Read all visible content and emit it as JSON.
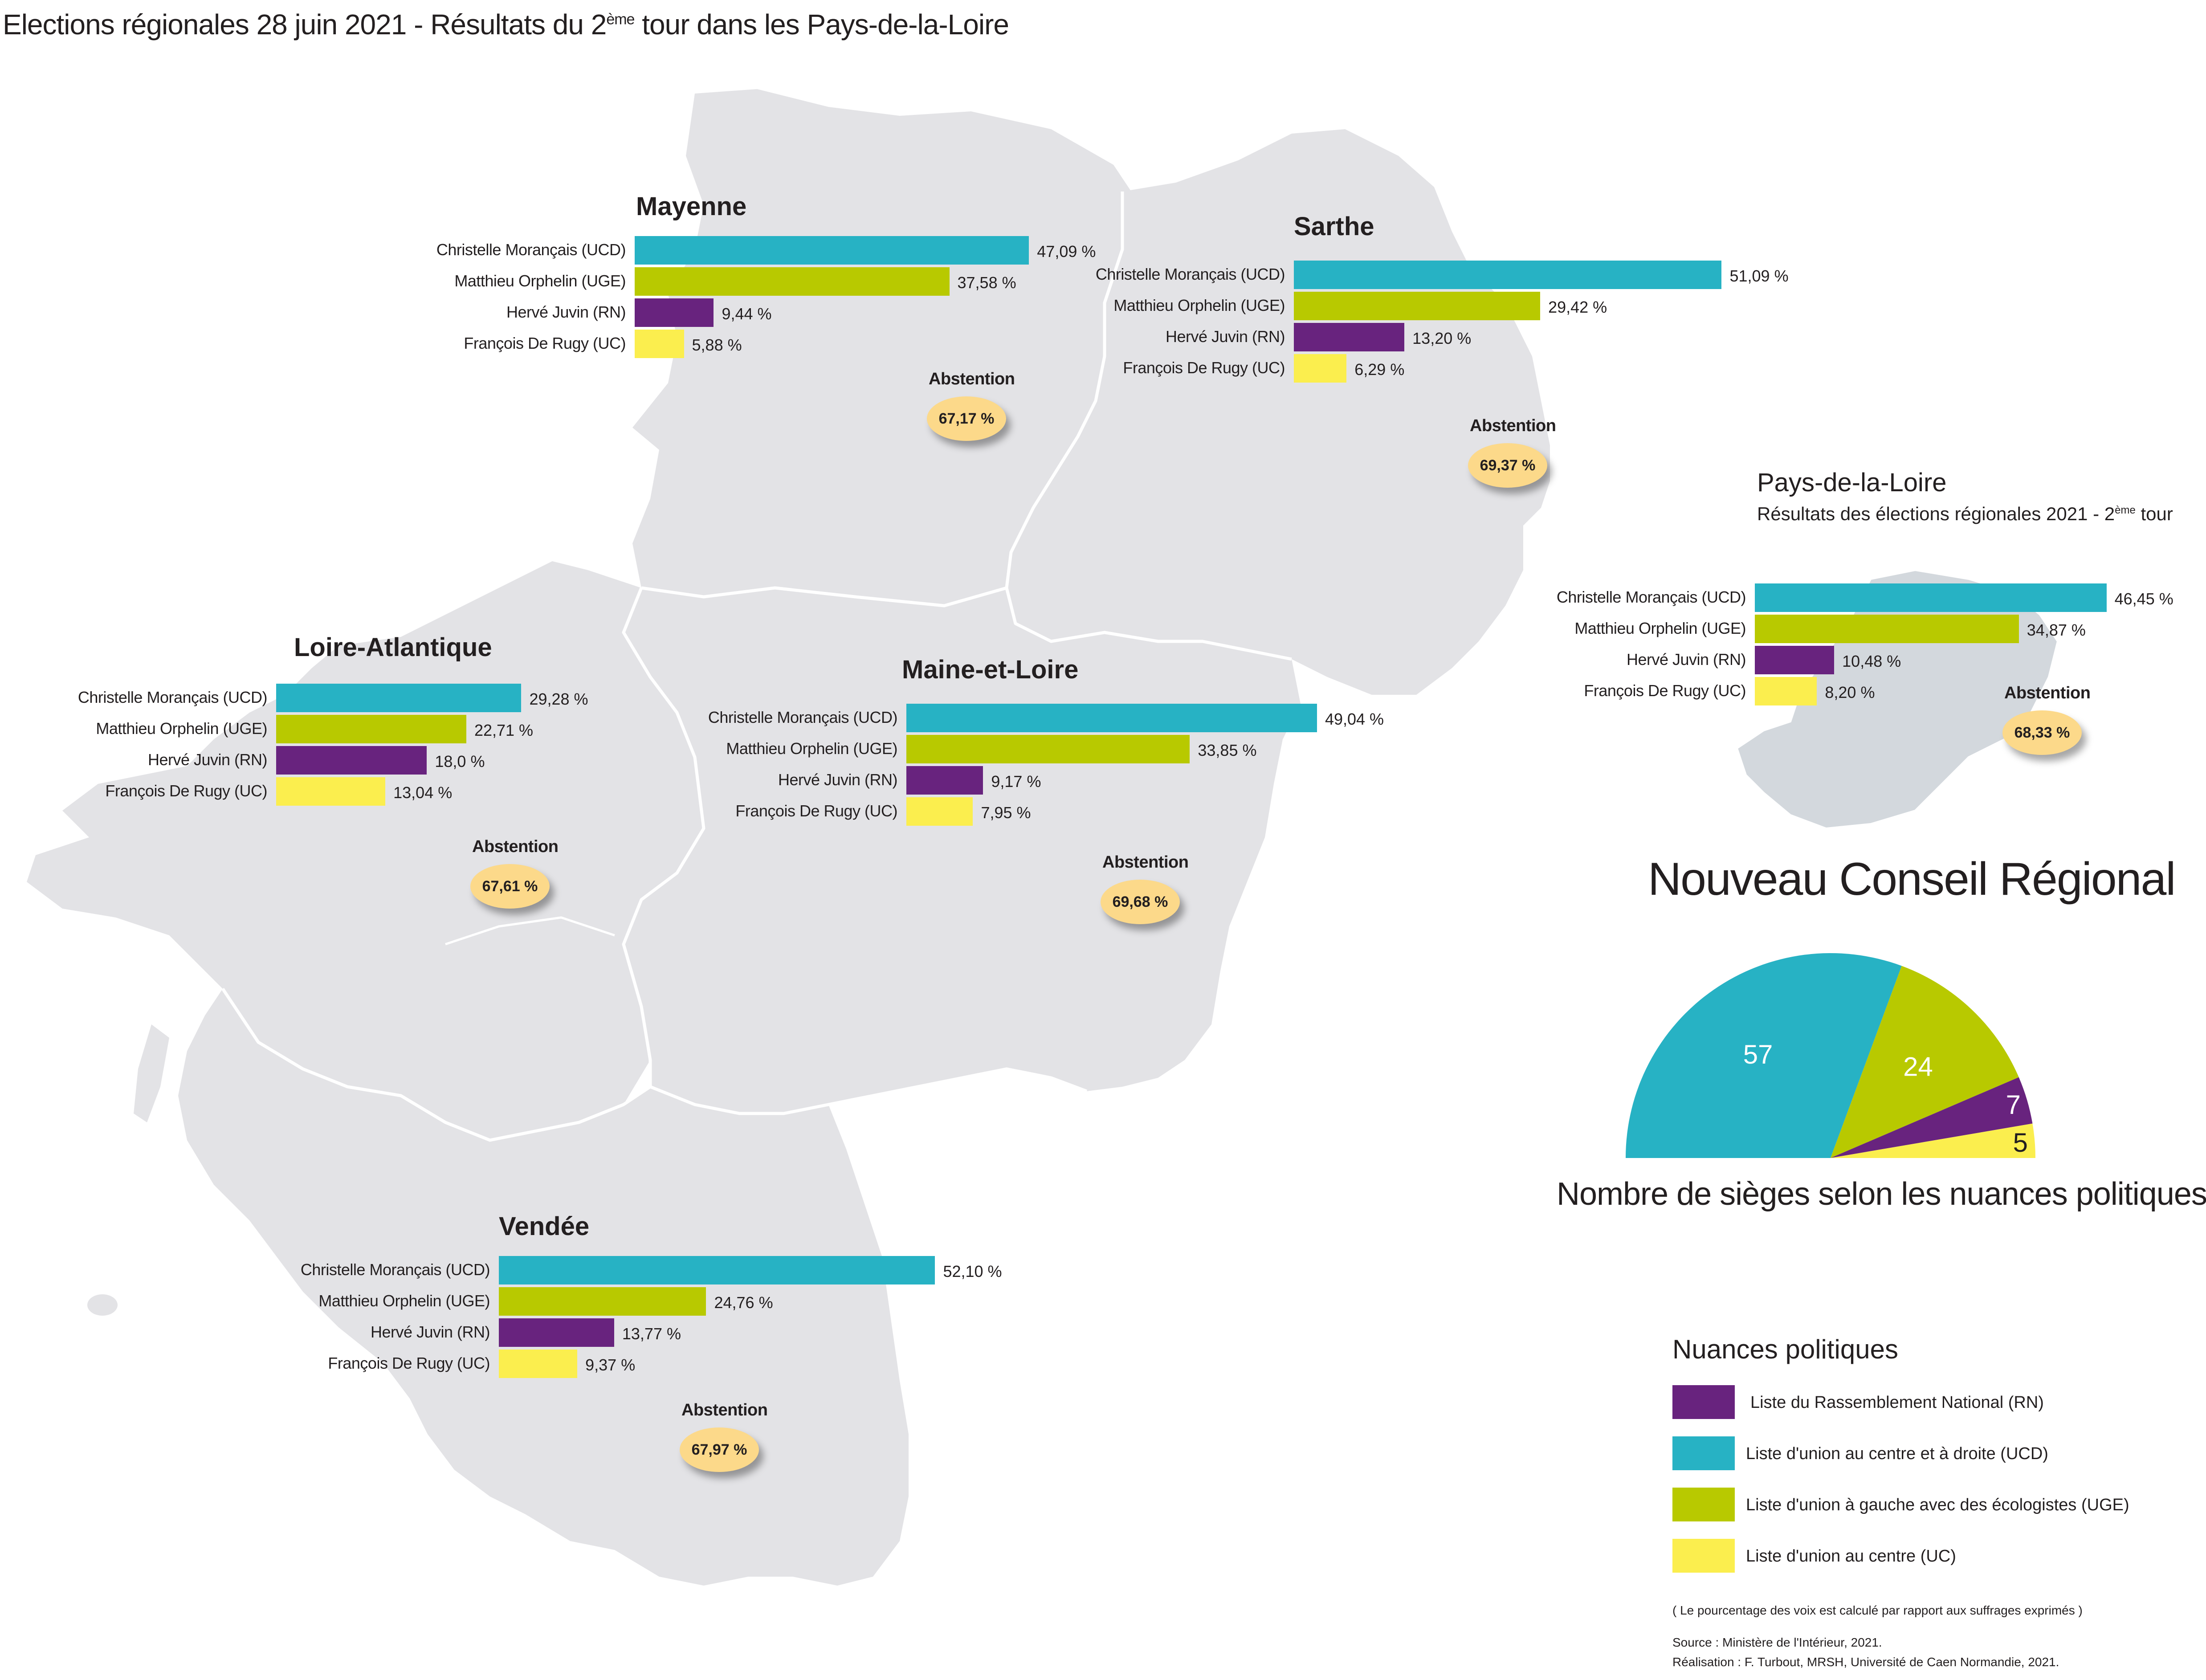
{
  "title": {
    "prefix": "Elections régionales 28 juin 2021 - Résultats du 2",
    "sup": "ème",
    "suffix": " tour dans les Pays-de-la-Loire"
  },
  "colors": {
    "UCD": "#27b2c4",
    "UGE": "#b8c900",
    "RN": "#68237e",
    "UC": "#fbee4e",
    "land": "#e3e3e6",
    "borders": "#ffffff",
    "inset_land": "#d3d8dd",
    "abstention_badge": "#fcd98a"
  },
  "candidates": [
    "Christelle Morançais (UCD)",
    "Matthieu Orphelin (UGE)",
    "Hervé Juvin (RN)",
    "François De Rugy (UC)"
  ],
  "abstention_label": "Abstention",
  "departments": [
    {
      "name": "Mayenne",
      "results": [
        {
          "party": "UCD",
          "pct": 47.09,
          "label": "47,09 %"
        },
        {
          "party": "UGE",
          "pct": 37.58,
          "label": "37,58 %"
        },
        {
          "party": "RN",
          "pct": 9.44,
          "label": "9,44 %"
        },
        {
          "party": "UC",
          "pct": 5.88,
          "label": "5,88 %"
        }
      ],
      "abstention": "67,17 %"
    },
    {
      "name": "Sarthe",
      "results": [
        {
          "party": "UCD",
          "pct": 51.09,
          "label": "51,09 %"
        },
        {
          "party": "UGE",
          "pct": 29.42,
          "label": "29,42 %"
        },
        {
          "party": "RN",
          "pct": 13.2,
          "label": "13,20 %"
        },
        {
          "party": "UC",
          "pct": 6.29,
          "label": "6,29 %"
        }
      ],
      "abstention": "69,37 %"
    },
    {
      "name": "Loire-Atlantique",
      "results": [
        {
          "party": "UCD",
          "pct": 29.28,
          "label": "29,28 %"
        },
        {
          "party": "UGE",
          "pct": 22.71,
          "label": "22,71 %"
        },
        {
          "party": "RN",
          "pct": 18.0,
          "label": "18,0 %"
        },
        {
          "party": "UC",
          "pct": 13.04,
          "label": "13,04 %"
        }
      ],
      "abstention": "67,61 %"
    },
    {
      "name": "Maine-et-Loire",
      "results": [
        {
          "party": "UCD",
          "pct": 49.04,
          "label": "49,04 %"
        },
        {
          "party": "UGE",
          "pct": 33.85,
          "label": "33,85 %"
        },
        {
          "party": "RN",
          "pct": 9.17,
          "label": "9,17 %"
        },
        {
          "party": "UC",
          "pct": 7.95,
          "label": "7,95 %"
        }
      ],
      "abstention": "69,68 %"
    },
    {
      "name": "Vendée",
      "results": [
        {
          "party": "UCD",
          "pct": 52.1,
          "label": "52,10 %"
        },
        {
          "party": "UGE",
          "pct": 24.76,
          "label": "24,76 %"
        },
        {
          "party": "RN",
          "pct": 13.77,
          "label": "13,77 %"
        },
        {
          "party": "UC",
          "pct": 9.37,
          "label": "9,37 %"
        }
      ],
      "abstention": "67,97 %"
    }
  ],
  "region": {
    "name": "Pays-de-la-Loire",
    "subtitle_prefix": "Résultats des élections régionales 2021 - 2",
    "subtitle_sup": "ème",
    "subtitle_suffix": " tour",
    "results": [
      {
        "party": "UCD",
        "pct": 46.45,
        "label": "46,45 %"
      },
      {
        "party": "UGE",
        "pct": 34.87,
        "label": "34,87 %"
      },
      {
        "party": "RN",
        "pct": 10.48,
        "label": "10,48 %"
      },
      {
        "party": "UC",
        "pct": 8.2,
        "label": "8,20 %"
      }
    ],
    "abstention": "68,33 %"
  },
  "council": {
    "title": "Nouveau Conseil Régional",
    "caption": "Nombre de sièges selon les nuances politiques",
    "seat_labels": [
      "57",
      "24",
      "7",
      "5"
    ]
  },
  "chart_data": {
    "type": "pie",
    "variant": "half-donut (parliament)",
    "title": "Nouveau Conseil Régional",
    "caption": "Nombre de sièges selon les nuances politiques",
    "categories": [
      "UCD",
      "UGE",
      "RN",
      "UC"
    ],
    "values": [
      57,
      24,
      7,
      5
    ],
    "colors": [
      "#27b2c4",
      "#b8c900",
      "#68237e",
      "#fbee4e"
    ]
  },
  "legend": {
    "title": "Nuances politiques",
    "items": [
      {
        "party": "RN",
        "label": "Liste du Rassemblement National (RN)"
      },
      {
        "party": "UCD",
        "label": "Liste d'union au centre et à droite (UCD)"
      },
      {
        "party": "UGE",
        "label": "Liste d'union à gauche avec des écologistes (UGE)"
      },
      {
        "party": "UC",
        "label": "Liste d'union au centre (UC)"
      }
    ]
  },
  "footnotes": {
    "note": "( Le pourcentage des voix est calculé par rapport aux suffrages exprimés )",
    "source": "Source : Ministère de l'Intérieur, 2021.",
    "credit": "Réalisation : F. Turbout, MRSH, Université de Caen Normandie, 2021."
  }
}
